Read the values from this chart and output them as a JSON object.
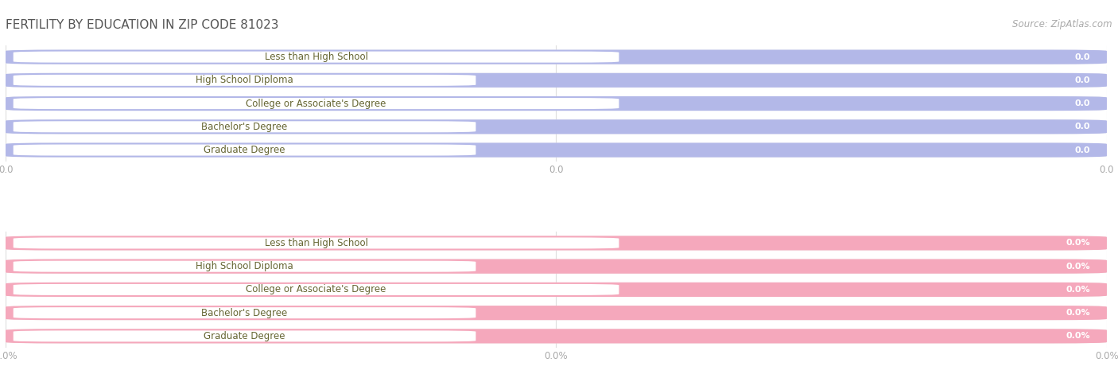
{
  "title": "FERTILITY BY EDUCATION IN ZIP CODE 81023",
  "source": "Source: ZipAtlas.com",
  "categories": [
    "Less than High School",
    "High School Diploma",
    "College or Associate's Degree",
    "Bachelor's Degree",
    "Graduate Degree"
  ],
  "values_top": [
    0.0,
    0.0,
    0.0,
    0.0,
    0.0
  ],
  "values_bottom": [
    0.0,
    0.0,
    0.0,
    0.0,
    0.0
  ],
  "bar_color_top": "#b3b8e8",
  "bar_color_bottom": "#f5a8bc",
  "bg_color": "#ffffff",
  "row_bg_color_top": "#e8e8f0",
  "row_bg_color_bottom": "#f0e8e8",
  "white_pill_color": "#ffffff",
  "label_text_color": "#666633",
  "value_text_color": "#ffffff",
  "tick_text_color": "#aaaaaa",
  "title_color": "#555555",
  "grid_color": "#dddddd",
  "figsize": [
    14.06,
    4.75
  ],
  "dpi": 100,
  "title_fontsize": 11,
  "label_fontsize": 8.5,
  "value_fontsize": 8,
  "tick_fontsize": 8.5,
  "source_fontsize": 8.5
}
